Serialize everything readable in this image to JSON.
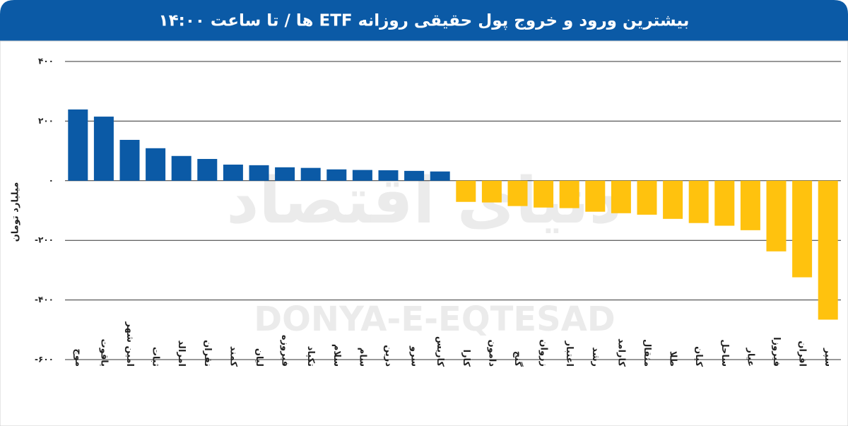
{
  "chart_data": {
    "type": "bar",
    "title": "بیشترین ورود و خروج پول حقیقی روزانه ETF ها / تا ساعت ۱۴:۰۰",
    "y_label": "میلیارد تومان",
    "watermark": [
      "دنیای اقتصاد",
      "DONYA-E-EQTESAD"
    ],
    "categories": [
      "موج",
      "یاقوت",
      "امین شهر",
      "ثبات",
      "امرالد",
      "نقران",
      "کمند",
      "لیان",
      "فیروزه",
      "تکپاد",
      "سلام",
      "سام",
      "درین",
      "سرو",
      "کاریس",
      "کارا",
      "دامون",
      "گنج",
      "زروان",
      "اعتبار",
      "رشد",
      "کارامد",
      "مثقال",
      "طلا",
      "کیان",
      "ساحل",
      "عیار",
      "فیروزا",
      "افران",
      "سپر"
    ],
    "values": [
      239,
      215,
      137,
      109,
      83,
      73,
      54,
      52,
      45,
      43,
      38,
      36,
      35,
      33,
      31,
      -71,
      -73,
      -85,
      -90,
      -92,
      -104,
      -109,
      -114,
      -128,
      -142,
      -151,
      -166,
      -237,
      -324,
      -466
    ],
    "color_positive": "#0b5aa6",
    "color_negative": "#ffc20e",
    "ylim": [
      -600,
      400
    ],
    "yticks": [
      {
        "value": -600,
        "label": "-۶۰۰"
      },
      {
        "value": -400,
        "label": "-۴۰۰"
      },
      {
        "value": -200,
        "label": "-۲۰۰"
      },
      {
        "value": 0,
        "label": "۰"
      },
      {
        "value": 200,
        "label": "۲۰۰"
      },
      {
        "value": 400,
        "label": "۴۰۰"
      }
    ],
    "grid": true
  }
}
